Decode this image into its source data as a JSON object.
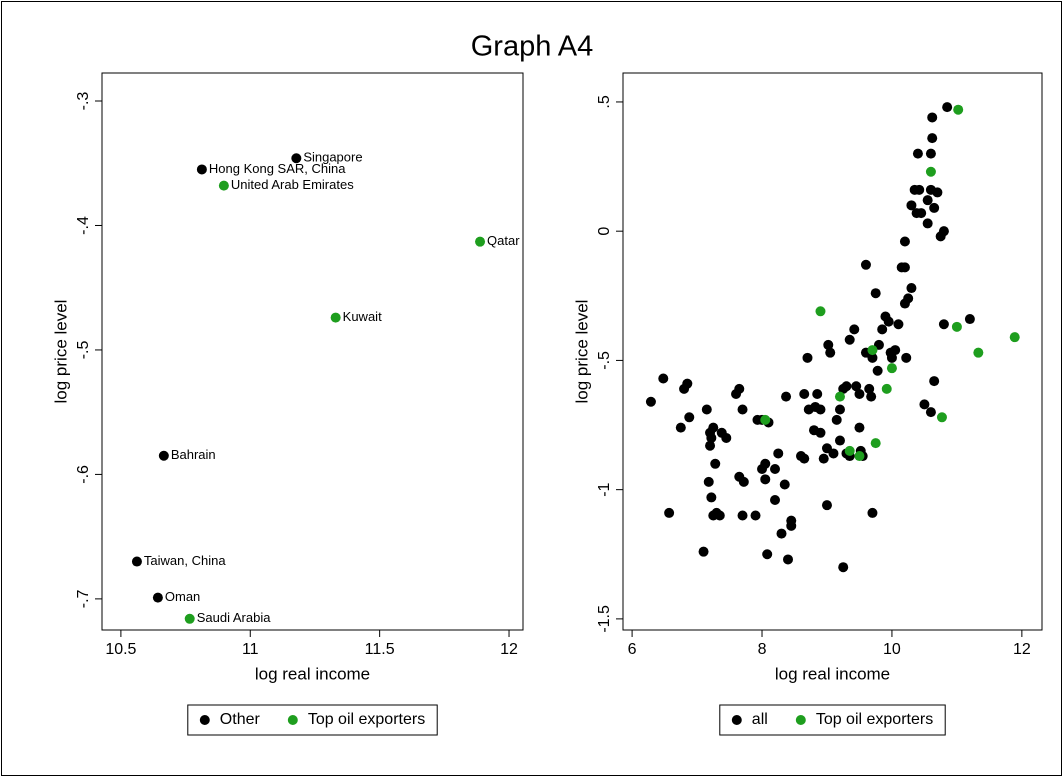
{
  "title": "Graph A4",
  "chart_data": [
    {
      "type": "scatter",
      "xlabel": "log real income",
      "ylabel": "log price level",
      "xlim": [
        10.427,
        12.054
      ],
      "ylim": [
        -0.725,
        -0.2775
      ],
      "xticks": [
        10.5,
        11,
        11.5,
        12
      ],
      "yticks": [
        {
          "value": -0.3,
          "label": "-.3"
        },
        {
          "value": -0.4,
          "label": "-.4"
        },
        {
          "value": -0.5,
          "label": "-.5"
        },
        {
          "value": -0.6,
          "label": "-.6"
        },
        {
          "value": -0.7,
          "label": "-.7"
        }
      ],
      "legend": "bottom",
      "series": [
        {
          "name": "Other",
          "color": "#000000",
          "x": [
            11.178,
            10.813,
            10.666,
            10.562,
            10.643
          ],
          "values": [
            -0.346,
            -0.355,
            -0.585,
            -0.67,
            -0.699
          ],
          "labels": [
            "Singapore",
            "Hong Kong SAR, China",
            "Bahrain",
            "Taiwan, China",
            "Oman"
          ]
        },
        {
          "name": "Top oil exporters",
          "color": "#1e9e1e",
          "x": [
            10.898,
            11.888,
            11.33,
            10.766
          ],
          "values": [
            -0.368,
            -0.413,
            -0.474,
            -0.716
          ],
          "labels": [
            "United Arab Emirates",
            "Qatar",
            "Kuwait",
            "Saudi Arabia"
          ]
        }
      ]
    },
    {
      "type": "scatter",
      "xlabel": "log real income",
      "ylabel": "log price level",
      "xlim": [
        5.86,
        12.31
      ],
      "ylim": [
        -1.543,
        0.612
      ],
      "xticks": [
        6,
        8,
        10,
        12
      ],
      "yticks": [
        {
          "value": 0.5,
          "label": ".5"
        },
        0,
        {
          "value": -0.5,
          "label": "-.5"
        },
        -1,
        -1.5
      ],
      "legend": "bottom",
      "series": [
        {
          "name": "all",
          "color": "#000000",
          "x": [
            6.29,
            6.48,
            6.57,
            6.8,
            6.85,
            6.88,
            6.75,
            7.15,
            7.2,
            7.22,
            7.2,
            7.25,
            7.18,
            7.22,
            7.1,
            7.25,
            7.3,
            7.35,
            7.28,
            7.38,
            7.45,
            7.6,
            7.65,
            7.7,
            7.65,
            7.72,
            7.7,
            7.9,
            7.93,
            8.0,
            8.0,
            8.05,
            8.05,
            8.1,
            8.08,
            8.2,
            8.2,
            8.25,
            8.3,
            8.37,
            8.35,
            8.45,
            8.45,
            8.4,
            8.6,
            8.65,
            8.7,
            8.65,
            8.72,
            8.82,
            8.85,
            8.9,
            8.8,
            8.9,
            8.95,
            9.0,
            9.0,
            9.02,
            9.05,
            9.1,
            9.15,
            9.2,
            9.25,
            9.2,
            9.3,
            9.35,
            9.25,
            9.3,
            9.35,
            9.42,
            9.45,
            9.55,
            9.5,
            9.5,
            9.52,
            9.6,
            9.65,
            9.7,
            9.68,
            9.7,
            9.75,
            9.78,
            9.8,
            9.85,
            9.9,
            9.95,
            9.98,
            10.0,
            10.05,
            10.1,
            10.15,
            10.2,
            10.2,
            10.25,
            10.2,
            10.22,
            10.3,
            10.3,
            10.35,
            10.38,
            10.4,
            10.42,
            10.45,
            10.5,
            10.55,
            10.6,
            10.6,
            10.62,
            10.62,
            10.6,
            10.65,
            10.65,
            10.7,
            10.75,
            10.8,
            10.8,
            10.85,
            11.2,
            10.55,
            9.6
          ],
          "values": [
            -0.66,
            -0.57,
            -1.09,
            -0.61,
            -0.59,
            -0.72,
            -0.76,
            -0.69,
            -0.78,
            -0.8,
            -0.83,
            -0.76,
            -0.97,
            -1.03,
            -1.24,
            -1.1,
            -1.09,
            -1.1,
            -0.9,
            -0.78,
            -0.8,
            -0.63,
            -0.61,
            -0.69,
            -0.95,
            -0.97,
            -1.1,
            -1.1,
            -0.73,
            -0.73,
            -0.92,
            -0.9,
            -0.96,
            -0.74,
            -1.25,
            -0.92,
            -1.04,
            -0.86,
            -1.17,
            -0.64,
            -0.98,
            -1.12,
            -1.14,
            -1.27,
            -0.87,
            -0.88,
            -0.49,
            -0.63,
            -0.69,
            -0.68,
            -0.63,
            -0.69,
            -0.77,
            -0.78,
            -0.88,
            -0.84,
            -1.06,
            -0.44,
            -0.47,
            -0.86,
            -0.73,
            -0.69,
            -0.61,
            -0.81,
            -0.86,
            -0.87,
            -1.3,
            -0.6,
            -0.42,
            -0.38,
            -0.6,
            -0.87,
            -0.63,
            -0.76,
            -0.85,
            -0.13,
            -0.61,
            -0.49,
            -0.64,
            -1.09,
            -0.24,
            -0.54,
            -0.44,
            -0.38,
            -0.33,
            -0.35,
            -0.47,
            -0.49,
            -0.46,
            -0.36,
            -0.14,
            -0.14,
            -0.04,
            -0.26,
            -0.28,
            -0.49,
            -0.22,
            0.1,
            0.16,
            0.07,
            0.3,
            0.16,
            0.07,
            -0.67,
            0.12,
            0.16,
            0.3,
            0.36,
            0.44,
            -0.7,
            -0.58,
            0.09,
            0.15,
            -0.02,
            0.0,
            -0.36,
            0.48,
            -0.34,
            0.03,
            -0.47
          ]
        },
        {
          "name": "Top oil exporters",
          "color": "#1e9e1e",
          "x": [
            8.05,
            8.9,
            9.2,
            9.35,
            9.5,
            9.7,
            9.75,
            9.92,
            10.0,
            10.6,
            10.77,
            11.0,
            11.02,
            11.33,
            11.89
          ],
          "values": [
            -0.73,
            -0.31,
            -0.64,
            -0.85,
            -0.87,
            -0.46,
            -0.82,
            -0.61,
            -0.53,
            0.23,
            -0.72,
            -0.37,
            0.47,
            -0.47,
            -0.41
          ]
        }
      ]
    }
  ]
}
